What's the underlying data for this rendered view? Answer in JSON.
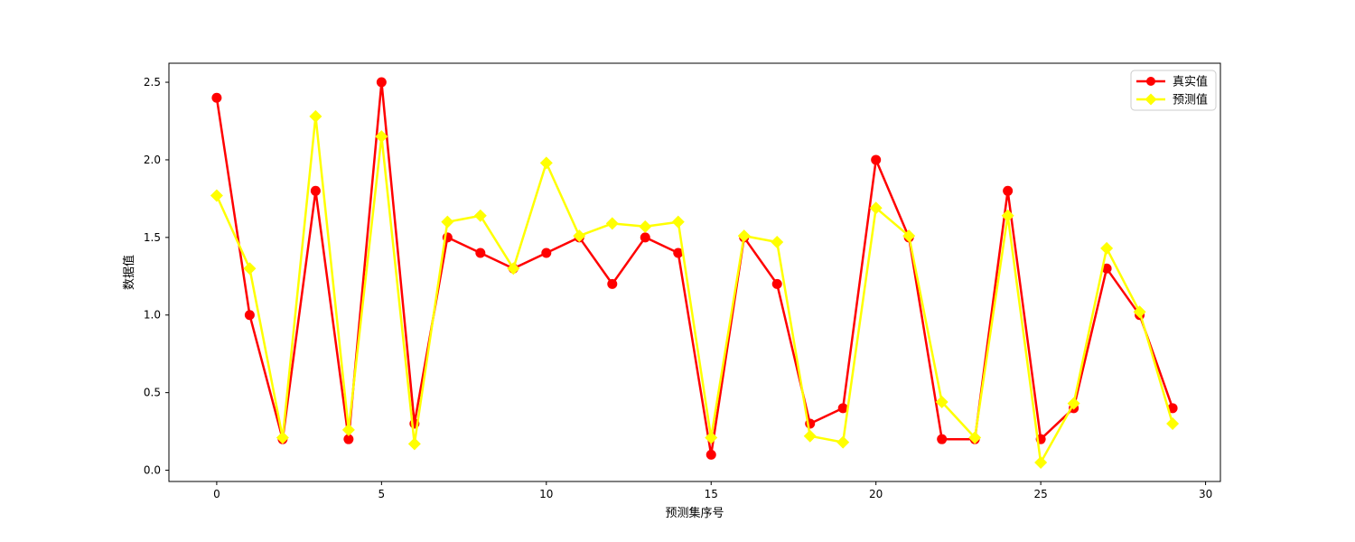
{
  "chart_data": {
    "type": "line",
    "title": "",
    "xlabel": "预测集序号",
    "ylabel": "数据值",
    "x": [
      0,
      1,
      2,
      3,
      4,
      5,
      6,
      7,
      8,
      9,
      10,
      11,
      12,
      13,
      14,
      15,
      16,
      17,
      18,
      19,
      20,
      21,
      22,
      23,
      24,
      25,
      26,
      27,
      28,
      29
    ],
    "series": [
      {
        "name": "真实值",
        "color": "#ff0000",
        "marker": "circle",
        "values": [
          2.4,
          1.0,
          0.2,
          1.8,
          0.2,
          2.5,
          0.3,
          1.5,
          1.4,
          1.3,
          1.4,
          1.5,
          1.2,
          1.5,
          1.4,
          0.1,
          1.5,
          1.2,
          0.3,
          0.4,
          2.0,
          1.5,
          0.2,
          0.2,
          1.8,
          0.2,
          0.4,
          1.3,
          1.0,
          0.4
        ]
      },
      {
        "name": "预测值",
        "color": "#ffff00",
        "marker": "diamond",
        "values": [
          1.77,
          1.3,
          0.21,
          2.28,
          0.26,
          2.15,
          0.17,
          1.6,
          1.64,
          1.3,
          1.98,
          1.51,
          1.59,
          1.57,
          1.6,
          0.21,
          1.51,
          1.47,
          0.22,
          0.18,
          1.69,
          1.51,
          0.44,
          0.21,
          1.64,
          0.05,
          0.43,
          1.43,
          1.02,
          0.3
        ]
      }
    ],
    "xticks": [
      0,
      5,
      10,
      15,
      20,
      25,
      30
    ],
    "ytick_labels": [
      "0.0",
      "0.5",
      "1.0",
      "1.5",
      "2.0",
      "2.5"
    ],
    "ytick_values": [
      0.0,
      0.5,
      1.0,
      1.5,
      2.0,
      2.5
    ],
    "xlim": [
      -1.45,
      30.45
    ],
    "ylim": [
      -0.0725,
      2.6225
    ],
    "grid": false,
    "legend_position": "upper right",
    "legend_labels": [
      "真实值",
      "预测值"
    ],
    "axis_color": "#000000",
    "background_color": "#ffffff"
  }
}
